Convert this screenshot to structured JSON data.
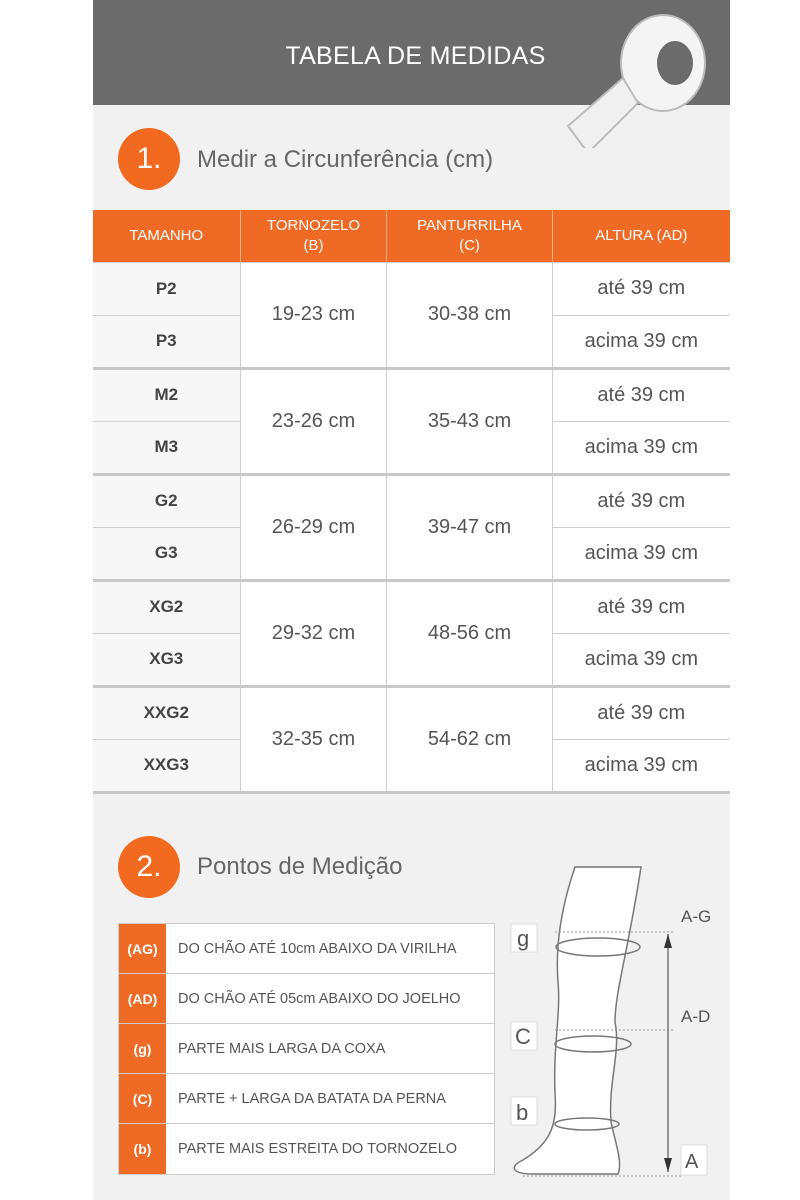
{
  "header": {
    "title": "TABELA DE MEDIDAS",
    "icon": "measuring-tape-icon"
  },
  "section1": {
    "number": "1.",
    "title": "Medir a Circunferência (cm)"
  },
  "table": {
    "headers": [
      [
        "TAMANHO",
        ""
      ],
      [
        "TORNOZELO",
        "(B)"
      ],
      [
        "PANTURRILHA",
        "(C)"
      ],
      [
        "ALTURA (AD)",
        ""
      ]
    ],
    "groups": [
      {
        "sizes": [
          "P2",
          "P3"
        ],
        "tornozelo": "19-23 cm",
        "panturrilha": "30-38 cm",
        "altura": [
          "até 39 cm",
          "acima 39 cm"
        ]
      },
      {
        "sizes": [
          "M2",
          "M3"
        ],
        "tornozelo": "23-26 cm",
        "panturrilha": "35-43 cm",
        "altura": [
          "até 39 cm",
          "acima 39 cm"
        ]
      },
      {
        "sizes": [
          "G2",
          "G3"
        ],
        "tornozelo": "26-29 cm",
        "panturrilha": "39-47 cm",
        "altura": [
          "até 39 cm",
          "acima 39 cm"
        ]
      },
      {
        "sizes": [
          "XG2",
          "XG3"
        ],
        "tornozelo": "29-32 cm",
        "panturrilha": "48-56 cm",
        "altura": [
          "até 39 cm",
          "acima 39 cm"
        ]
      },
      {
        "sizes": [
          "XXG2",
          "XXG3"
        ],
        "tornozelo": "32-35 cm",
        "panturrilha": "54-62 cm",
        "altura": [
          "até 39 cm",
          "acima 39 cm"
        ]
      }
    ]
  },
  "section2": {
    "number": "2.",
    "title": "Pontos de Medição"
  },
  "legend": [
    {
      "code": "(AG)",
      "text": "DO CHÃO ATÉ 10cm ABAIXO DA VIRILHA"
    },
    {
      "code": "(AD)",
      "text": "DO CHÃO ATÉ 05cm ABAIXO DO JOELHO"
    },
    {
      "code": "(g)",
      "text": "PARTE MAIS LARGA DA COXA"
    },
    {
      "code": "(C)",
      "text": "PARTE + LARGA DA BATATA DA PERNA"
    },
    {
      "code": "(b)",
      "text": "PARTE MAIS ESTREITA DO TORNOZELO"
    }
  ],
  "diagram": {
    "labels": {
      "g": "g",
      "c": "C",
      "b": "b",
      "ag": "A-G",
      "ad": "A-D",
      "a": "A"
    }
  },
  "colors": {
    "accent": "#ef6a24",
    "header": "#6b6b6b"
  }
}
